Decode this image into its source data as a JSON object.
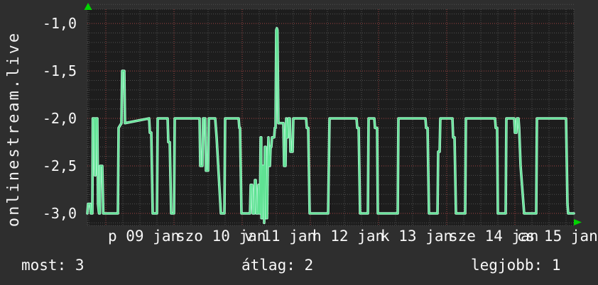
{
  "watermark": "onlinestream.live",
  "stats": [
    {
      "label": "most:",
      "value": "3"
    },
    {
      "label": "átlag:",
      "value": "2"
    },
    {
      "label": "legjobb:",
      "value": "1"
    }
  ],
  "icons": {
    "y_axis_arrow": "up-arrow",
    "x_axis_arrow": "right-arrow"
  },
  "colors": {
    "background": "#2e2e2e",
    "plot_background": "#1d1d1d",
    "grid_minor": "#4f4f4f",
    "grid_major": "#9e4343",
    "line_core": "#5fe293",
    "line_halo": "#aef3cf",
    "arrow": "#00d400",
    "text": "#f8f8f8"
  },
  "chart_data": {
    "type": "line",
    "title": "",
    "legend_position": "none",
    "grid": {
      "style": "dotted",
      "minor_step_value": 0.1,
      "minor_step_hours": 6
    },
    "y_axis": {
      "range": [
        -3.127,
        -0.85
      ],
      "major_ticks": [
        {
          "v": -1.0,
          "label": "-1,0"
        },
        {
          "v": -1.5,
          "label": "-1,5"
        },
        {
          "v": -2.0,
          "label": "-2,0"
        },
        {
          "v": -2.5,
          "label": "-2,5"
        },
        {
          "v": -3.0,
          "label": "-3,0"
        }
      ]
    },
    "x_axis": {
      "unit": "hours_since_start",
      "range": [
        0,
        171.25
      ],
      "minor_offset_hours": 0.5,
      "major_ticks": [
        {
          "t": 6.5,
          "label": "p 09 jan"
        },
        {
          "t": 30.5,
          "label": "szo 10 jan"
        },
        {
          "t": 54.5,
          "label": "v 11 jan"
        },
        {
          "t": 78.5,
          "label": "h 12 jan"
        },
        {
          "t": 102.5,
          "label": "k 13 jan"
        },
        {
          "t": 126.5,
          "label": "sze 14 jan"
        },
        {
          "t": 150.5,
          "label": "cs 15 jan"
        }
      ]
    },
    "series": [
      {
        "name": "onlinestream.live",
        "points": [
          [
            0,
            -3
          ],
          [
            0.25,
            -2.9
          ],
          [
            1,
            -2.9
          ],
          [
            1.25,
            -3
          ],
          [
            1.75,
            -3
          ],
          [
            1.9,
            -2
          ],
          [
            2.5,
            -2
          ],
          [
            2.75,
            -2.6
          ],
          [
            3,
            -2
          ],
          [
            3.5,
            -2
          ],
          [
            3.75,
            -2.9
          ],
          [
            4.1,
            -3
          ],
          [
            4.4,
            -3
          ],
          [
            4.5,
            -2.5
          ],
          [
            5.25,
            -2.5
          ],
          [
            5.6,
            -3
          ],
          [
            10.75,
            -3
          ],
          [
            11,
            -2.1
          ],
          [
            12,
            -2.05
          ],
          [
            12.25,
            -1.5
          ],
          [
            13,
            -1.5
          ],
          [
            13.25,
            -2.05
          ],
          [
            21.75,
            -2
          ],
          [
            22,
            -2.15
          ],
          [
            22.5,
            -2.15
          ],
          [
            23,
            -3
          ],
          [
            24.5,
            -3
          ],
          [
            24.75,
            -2
          ],
          [
            28.25,
            -2
          ],
          [
            28.5,
            -2.25
          ],
          [
            29,
            -2.25
          ],
          [
            29.5,
            -3
          ],
          [
            30.5,
            -3
          ],
          [
            30.75,
            -2
          ],
          [
            39.5,
            -2
          ],
          [
            39.75,
            -2.5
          ],
          [
            40.5,
            -2.5
          ],
          [
            40.75,
            -2
          ],
          [
            41.5,
            -2
          ],
          [
            41.75,
            -2.55
          ],
          [
            42.5,
            -2.55
          ],
          [
            42.75,
            -2
          ],
          [
            45,
            -2
          ],
          [
            45.5,
            -2.2
          ],
          [
            47,
            -3
          ],
          [
            48.25,
            -3
          ],
          [
            48.5,
            -2
          ],
          [
            53.25,
            -2
          ],
          [
            53.5,
            -2.1
          ],
          [
            53.75,
            -2.1
          ],
          [
            54.25,
            -3
          ],
          [
            57.25,
            -3
          ],
          [
            57.5,
            -2.7
          ],
          [
            58,
            -2.7
          ],
          [
            58.25,
            -3
          ],
          [
            58.75,
            -3
          ],
          [
            59,
            -2.65
          ],
          [
            59.25,
            -2.65
          ],
          [
            59.5,
            -3
          ],
          [
            60,
            -3
          ],
          [
            60.25,
            -2.7
          ],
          [
            60.5,
            -3
          ],
          [
            60.75,
            -3
          ],
          [
            61,
            -2.2
          ],
          [
            61.2,
            -2.2
          ],
          [
            61.3,
            -3.05
          ],
          [
            61.5,
            -3.05
          ],
          [
            61.75,
            -2.5
          ],
          [
            62,
            -2.5
          ],
          [
            62.25,
            -3.1
          ],
          [
            62.5,
            -2.3
          ],
          [
            62.75,
            -2.3
          ],
          [
            63,
            -3.05
          ],
          [
            63.25,
            -3.05
          ],
          [
            63.5,
            -2.5
          ],
          [
            63.75,
            -2.2
          ],
          [
            64,
            -2.5
          ],
          [
            64.25,
            -2.5
          ],
          [
            64.5,
            -2.3
          ],
          [
            64.75,
            -2.3
          ],
          [
            65,
            -2.2
          ],
          [
            65.75,
            -2.2
          ],
          [
            66,
            -2.1
          ],
          [
            66.25,
            -2.1
          ],
          [
            66.5,
            -1.07
          ],
          [
            66.7,
            -1.05
          ],
          [
            66.9,
            -1.07
          ],
          [
            67.25,
            -2.05
          ],
          [
            69,
            -2.05
          ],
          [
            69.25,
            -2.5
          ],
          [
            69.75,
            -2.5
          ],
          [
            70,
            -2
          ],
          [
            70.25,
            -2.2
          ],
          [
            70.5,
            -2.2
          ],
          [
            70.75,
            -2
          ],
          [
            71.25,
            -2
          ],
          [
            71.5,
            -2.35
          ],
          [
            72.25,
            -2.35
          ],
          [
            72.5,
            -2
          ],
          [
            77,
            -2
          ],
          [
            77.25,
            -2.1
          ],
          [
            77.75,
            -2.1
          ],
          [
            78.25,
            -3
          ],
          [
            84.75,
            -3
          ],
          [
            85,
            -2.5
          ],
          [
            85.25,
            -2
          ],
          [
            94.75,
            -2
          ],
          [
            95,
            -2.1
          ],
          [
            95.5,
            -2.1
          ],
          [
            96,
            -3
          ],
          [
            98.75,
            -3
          ],
          [
            99,
            -2
          ],
          [
            101,
            -2
          ],
          [
            101.25,
            -2.1
          ],
          [
            102,
            -2.1
          ],
          [
            102.25,
            -3
          ],
          [
            109.25,
            -3
          ],
          [
            109.5,
            -2
          ],
          [
            119,
            -2
          ],
          [
            119.25,
            -2.1
          ],
          [
            119.75,
            -2.1
          ],
          [
            120.25,
            -3
          ],
          [
            123.25,
            -3
          ],
          [
            123.5,
            -2.35
          ],
          [
            124,
            -2.35
          ],
          [
            124.25,
            -2
          ],
          [
            128.5,
            -2
          ],
          [
            128.75,
            -2.2
          ],
          [
            129.25,
            -2.2
          ],
          [
            129.75,
            -3
          ],
          [
            133,
            -3
          ],
          [
            133.25,
            -2
          ],
          [
            143.5,
            -2
          ],
          [
            143.75,
            -2.1
          ],
          [
            144.25,
            -2.1
          ],
          [
            144.5,
            -3
          ],
          [
            147.25,
            -3
          ],
          [
            147.5,
            -2
          ],
          [
            150.25,
            -2
          ],
          [
            150.5,
            -2.15
          ],
          [
            151,
            -2.15
          ],
          [
            151.25,
            -2
          ],
          [
            151.75,
            -2
          ],
          [
            152,
            -2.1
          ],
          [
            152.5,
            -2.5
          ],
          [
            153.75,
            -3
          ],
          [
            158,
            -3
          ],
          [
            158.25,
            -2
          ],
          [
            168.5,
            -2
          ],
          [
            169,
            -2.9
          ],
          [
            169.25,
            -3
          ],
          [
            171.25,
            -3
          ]
        ]
      }
    ]
  }
}
